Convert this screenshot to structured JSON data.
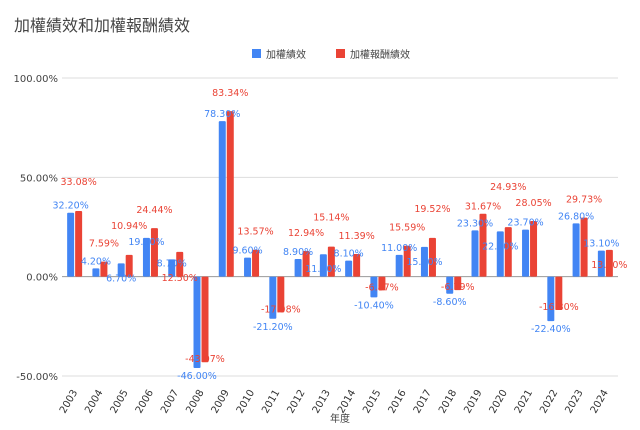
{
  "chart_data": {
    "type": "bar",
    "title": "加權績效和加權報酬績效",
    "xlabel": "年度",
    "ylabel": "",
    "ylim": [
      -50,
      100
    ],
    "yticks": [
      "-50.00%",
      "0.00%",
      "50.00%",
      "100.00%"
    ],
    "grid": true,
    "legend": "top",
    "categories": [
      "2003",
      "2004",
      "2005",
      "2006",
      "2007",
      "2008",
      "2009",
      "2010",
      "2011",
      "2012",
      "2013",
      "2014",
      "2015",
      "2016",
      "2017",
      "2018",
      "2019",
      "2020",
      "2021",
      "2022",
      "2023",
      "2024"
    ],
    "series": [
      {
        "name": "加權績效",
        "color": "#4285f4",
        "values": [
          32.2,
          4.2,
          6.7,
          19.5,
          8.7,
          -46.0,
          78.3,
          9.6,
          -21.2,
          8.9,
          11.3,
          8.1,
          -10.4,
          11.0,
          15.0,
          -8.6,
          23.3,
          22.8,
          23.7,
          -22.4,
          26.8,
          13.1
        ]
      },
      {
        "name": "加權報酬績效",
        "color": "#ea4335",
        "values": [
          33.08,
          7.59,
          10.94,
          24.44,
          12.5,
          -43.07,
          83.34,
          13.57,
          -17.98,
          12.94,
          15.14,
          11.39,
          -6.87,
          15.59,
          19.52,
          -6.79,
          31.67,
          24.93,
          28.05,
          -16.8,
          29.73,
          13.5
        ]
      }
    ]
  }
}
